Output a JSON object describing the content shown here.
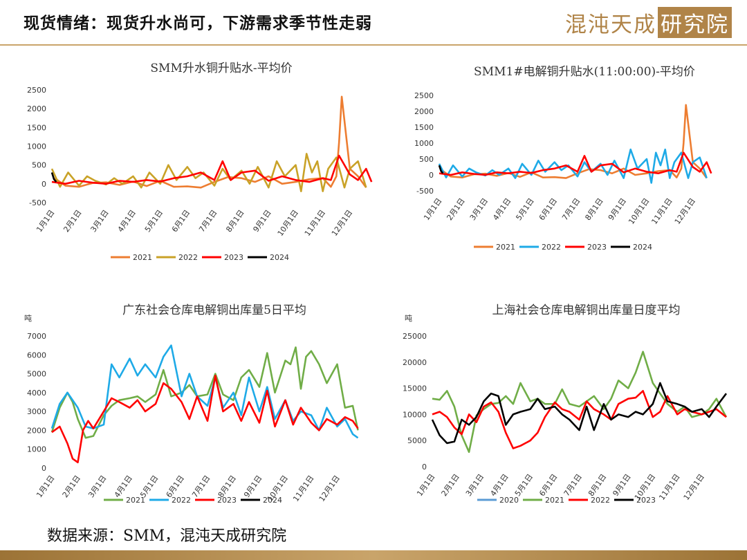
{
  "header": {
    "title": "现货情绪：现货升水尚可，下游需求季节性走弱",
    "brand_text": "混沌天成研究院"
  },
  "footer": {
    "source": "数据来源：SMM，混沌天成研究院"
  },
  "colors": {
    "accent": "#c9a46a",
    "y2020": "#5b9bd5",
    "y2021_orange": "#ed7d31",
    "y2021_green": "#70ad47",
    "y2022_gold": "#c9a227",
    "y2022_blue": "#1eaae7",
    "y2023": "#ff0000",
    "y2024": "#000000"
  },
  "chart_data": [
    {
      "type": "line",
      "title": "SMM升水铜升贴水-平均价",
      "unit": "",
      "x_ticks": [
        "1月1日",
        "2月1日",
        "3月1日",
        "4月1日",
        "5月1日",
        "6月1日",
        "7月1日",
        "8月1日",
        "9月1日",
        "10月1日",
        "11月1日",
        "12月1日"
      ],
      "ylim": [
        -500,
        2500
      ],
      "y_ticks": [
        -500,
        0,
        500,
        1000,
        1500,
        2000,
        2500
      ],
      "series": [
        {
          "name": "2021",
          "color": "#ed7d31",
          "x": [
            0.1,
            0.5,
            1,
            1.5,
            2,
            2.5,
            3,
            3.5,
            4,
            4.5,
            5,
            5.5,
            6,
            6.5,
            7,
            7.5,
            8,
            8.5,
            9,
            9.5,
            10,
            10.3,
            10.5,
            10.6,
            10.7,
            11,
            11.3,
            11.6
          ],
          "values": [
            150,
            -50,
            -80,
            20,
            40,
            -30,
            60,
            -60,
            80,
            -80,
            -70,
            -100,
            50,
            180,
            150,
            50,
            200,
            0,
            50,
            120,
            150,
            -80,
            200,
            1100,
            2320,
            400,
            200,
            -100
          ]
        },
        {
          "name": "2022",
          "color": "#c9a227",
          "x": [
            0,
            0.3,
            0.6,
            1,
            1.3,
            1.6,
            2,
            2.3,
            2.6,
            3,
            3.3,
            3.6,
            4,
            4.3,
            4.6,
            5,
            5.3,
            5.6,
            6,
            6.3,
            6.6,
            7,
            7.3,
            7.6,
            8,
            8.3,
            8.6,
            9,
            9.2,
            9.4,
            9.6,
            9.8,
            10,
            10.2,
            10.5,
            10.8,
            11,
            11.3,
            11.6
          ],
          "values": [
            400,
            -80,
            300,
            -50,
            200,
            80,
            -20,
            150,
            0,
            200,
            -100,
            300,
            0,
            500,
            100,
            450,
            150,
            300,
            -50,
            400,
            100,
            350,
            0,
            450,
            -100,
            600,
            200,
            500,
            -200,
            800,
            300,
            600,
            -200,
            400,
            700,
            -100,
            400,
            600,
            -100
          ]
        },
        {
          "name": "2023",
          "color": "#ff0000",
          "x": [
            0,
            0.5,
            1,
            1.5,
            2,
            2.5,
            3,
            3.5,
            4,
            4.5,
            5,
            5.5,
            6,
            6.3,
            6.6,
            7,
            7.5,
            8,
            8.5,
            9,
            9.5,
            10,
            10.3,
            10.6,
            11,
            11.3,
            11.6,
            11.8
          ],
          "values": [
            50,
            0,
            80,
            30,
            0,
            80,
            50,
            100,
            60,
            150,
            200,
            300,
            100,
            600,
            100,
            300,
            350,
            80,
            200,
            100,
            50,
            150,
            100,
            750,
            250,
            100,
            400,
            50
          ]
        },
        {
          "name": "2024",
          "color": "#000000",
          "x": [
            0,
            0.08,
            0.16
          ],
          "values": [
            300,
            120,
            50
          ]
        }
      ]
    },
    {
      "type": "line",
      "title": "SMM1#电解铜升贴水(11:00:00)-平均价",
      "unit": "",
      "x_ticks": [
        "1月1日",
        "2月1日",
        "3月1日",
        "4月1日",
        "5月1日",
        "6月1日",
        "7月1日",
        "8月1日",
        "9月1日",
        "10月1日",
        "11月1日",
        "12月1日"
      ],
      "ylim": [
        -500,
        2500
      ],
      "y_ticks": [
        -500,
        0,
        500,
        1000,
        1500,
        2000,
        2500
      ],
      "series": [
        {
          "name": "2021",
          "color": "#ed7d31",
          "x": [
            0.1,
            0.5,
            1,
            1.5,
            2,
            2.5,
            3,
            3.5,
            4,
            4.5,
            5,
            5.5,
            6,
            6.5,
            7,
            7.5,
            8,
            8.5,
            9,
            9.5,
            10,
            10.3,
            10.5,
            10.6,
            10.7,
            11,
            11.3,
            11.6
          ],
          "values": [
            150,
            -50,
            -80,
            20,
            40,
            -30,
            60,
            -60,
            80,
            -80,
            -70,
            -100,
            50,
            180,
            150,
            50,
            200,
            0,
            50,
            120,
            150,
            -80,
            200,
            1000,
            2200,
            400,
            200,
            -100
          ]
        },
        {
          "name": "2022",
          "color": "#1eaae7",
          "x": [
            0,
            0.3,
            0.6,
            1,
            1.3,
            1.6,
            2,
            2.3,
            2.6,
            3,
            3.3,
            3.6,
            4,
            4.3,
            4.6,
            5,
            5.3,
            5.6,
            6,
            6.3,
            6.6,
            7,
            7.3,
            7.6,
            8,
            8.3,
            8.6,
            9,
            9.2,
            9.4,
            9.6,
            9.8,
            10,
            10.2,
            10.5,
            10.8,
            11,
            11.3,
            11.6
          ],
          "values": [
            350,
            -80,
            300,
            -50,
            200,
            80,
            -20,
            150,
            0,
            200,
            -100,
            350,
            0,
            450,
            100,
            400,
            150,
            300,
            -50,
            400,
            100,
            350,
            0,
            450,
            -100,
            800,
            200,
            500,
            -250,
            700,
            300,
            800,
            -100,
            400,
            700,
            -100,
            400,
            550,
            -100
          ]
        },
        {
          "name": "2023",
          "color": "#ff0000",
          "x": [
            0,
            0.5,
            1,
            1.5,
            2,
            2.5,
            3,
            3.5,
            4,
            4.5,
            5,
            5.5,
            6,
            6.3,
            6.6,
            7,
            7.5,
            8,
            8.5,
            9,
            9.5,
            10,
            10.3,
            10.6,
            11,
            11.3,
            11.6,
            11.8
          ],
          "values": [
            50,
            0,
            80,
            30,
            0,
            80,
            50,
            100,
            60,
            150,
            200,
            300,
            100,
            600,
            100,
            300,
            350,
            80,
            200,
            100,
            50,
            150,
            100,
            700,
            250,
            100,
            400,
            50
          ]
        },
        {
          "name": "2024",
          "color": "#000000",
          "x": [
            0,
            0.08,
            0.16
          ],
          "values": [
            300,
            120,
            50
          ]
        }
      ]
    },
    {
      "type": "line",
      "title": "广东社会仓库电解铜出库量5日平均",
      "unit": "吨",
      "x_ticks": [
        "1月1日",
        "2月1日",
        "3月1日",
        "4月1日",
        "5月1日",
        "6月1日",
        "7月1日",
        "8月1日",
        "9月1日",
        "10月1日",
        "11月1日",
        "12月1日"
      ],
      "ylim": [
        0,
        7000
      ],
      "y_ticks": [
        0,
        1000,
        2000,
        3000,
        4000,
        5000,
        6000,
        7000
      ],
      "series": [
        {
          "name": "2021",
          "color": "#70ad47",
          "x": [
            0,
            0.3,
            0.6,
            0.8,
            1,
            1.3,
            1.6,
            2,
            2.3,
            2.6,
            3,
            3.3,
            3.6,
            4,
            4.3,
            4.6,
            5,
            5.3,
            5.6,
            6,
            6.3,
            6.6,
            7,
            7.3,
            7.6,
            8,
            8.3,
            8.6,
            9,
            9.2,
            9.4,
            9.6,
            9.8,
            10,
            10.3,
            10.6,
            11,
            11.3,
            11.6,
            11.8
          ],
          "values": [
            1900,
            3200,
            4000,
            3500,
            2600,
            1600,
            1700,
            2800,
            3300,
            3600,
            3700,
            3800,
            3500,
            3900,
            5200,
            3800,
            4000,
            4400,
            3800,
            3900,
            5000,
            3900,
            3600,
            4800,
            5200,
            4300,
            6100,
            4000,
            5700,
            5500,
            6400,
            4200,
            5900,
            6200,
            5500,
            4500,
            5500,
            3200,
            3300,
            2000
          ]
        },
        {
          "name": "2022",
          "color": "#1eaae7",
          "x": [
            0,
            0.3,
            0.6,
            1,
            1.3,
            1.6,
            2,
            2.3,
            2.6,
            3,
            3.3,
            3.6,
            4,
            4.3,
            4.6,
            5,
            5.3,
            5.6,
            6,
            6.3,
            6.6,
            7,
            7.3,
            7.6,
            8,
            8.3,
            8.6,
            9,
            9.3,
            9.6,
            10,
            10.3,
            10.6,
            11,
            11.3,
            11.6,
            11.8
          ],
          "values": [
            2100,
            3400,
            4000,
            3200,
            2200,
            2100,
            2300,
            5500,
            4800,
            5800,
            4900,
            5500,
            4800,
            5900,
            6500,
            3800,
            5000,
            3800,
            3300,
            4800,
            3200,
            4000,
            2800,
            4800,
            3000,
            4300,
            2600,
            3600,
            2500,
            3000,
            2800,
            2000,
            3200,
            2200,
            2600,
            1800,
            1600
          ]
        },
        {
          "name": "2023",
          "color": "#ff0000",
          "x": [
            0,
            0.3,
            0.6,
            0.8,
            1,
            1.2,
            1.4,
            1.6,
            2,
            2.3,
            2.6,
            3,
            3.3,
            3.6,
            4,
            4.3,
            4.6,
            5,
            5.3,
            5.6,
            6,
            6.3,
            6.6,
            7,
            7.3,
            7.6,
            8,
            8.3,
            8.6,
            9,
            9.3,
            9.6,
            10,
            10.3,
            10.6,
            11,
            11.3,
            11.6,
            11.8
          ],
          "values": [
            1900,
            2200,
            1300,
            500,
            300,
            2000,
            2500,
            2100,
            3000,
            3700,
            3500,
            3200,
            3600,
            3000,
            3400,
            4500,
            4200,
            3500,
            2600,
            3800,
            2500,
            4900,
            3000,
            3400,
            2500,
            3500,
            2400,
            4100,
            2200,
            3600,
            2300,
            3200,
            2400,
            2000,
            2600,
            2300,
            2700,
            2500,
            2100
          ]
        },
        {
          "name": "2024",
          "color": "#000000",
          "x": [],
          "values": []
        }
      ]
    },
    {
      "type": "line",
      "title": "上海社会仓库电解铜出库量日度平均",
      "unit": "吨",
      "x_ticks": [
        "1月1日",
        "2月1日",
        "3月1日",
        "4月1日",
        "5月1日",
        "6月1日",
        "7月1日",
        "8月1日",
        "9月1日",
        "10月1日",
        "11月1日",
        "12月1日"
      ],
      "ylim": [
        0,
        25000
      ],
      "y_ticks": [
        0,
        5000,
        10000,
        15000,
        20000,
        25000
      ],
      "series": [
        {
          "name": "2020",
          "color": "#5b9bd5",
          "x": [],
          "values": []
        },
        {
          "name": "2021",
          "color": "#70ad47",
          "x": [
            0,
            0.3,
            0.6,
            0.9,
            1.2,
            1.5,
            1.8,
            2.1,
            2.4,
            2.7,
            3,
            3.3,
            3.6,
            4,
            4.3,
            4.6,
            5,
            5.3,
            5.6,
            6,
            6.3,
            6.6,
            7,
            7.3,
            7.6,
            8,
            8.3,
            8.6,
            9,
            9.3,
            9.6,
            10,
            10.3,
            10.6,
            11,
            11.3,
            11.6,
            12
          ],
          "values": [
            13000,
            12800,
            14500,
            11500,
            6000,
            2800,
            9800,
            11000,
            12000,
            12200,
            13500,
            12000,
            16000,
            12500,
            13000,
            12000,
            12000,
            14800,
            12000,
            11500,
            12500,
            13500,
            11000,
            13000,
            16500,
            15000,
            18000,
            22000,
            16000,
            14000,
            12000,
            10500,
            11500,
            9500,
            10000,
            11000,
            13000,
            9500
          ]
        },
        {
          "name": "2022",
          "color": "#ff0000",
          "x": [
            0,
            0.3,
            0.6,
            0.9,
            1.2,
            1.5,
            1.8,
            2.1,
            2.4,
            2.7,
            3,
            3.3,
            3.6,
            4,
            4.3,
            4.6,
            5,
            5.3,
            5.6,
            6,
            6.3,
            6.6,
            7,
            7.3,
            7.6,
            8,
            8.3,
            8.6,
            9,
            9.3,
            9.6,
            10,
            10.3,
            10.6,
            11,
            11.3,
            11.6,
            12
          ],
          "values": [
            10000,
            10500,
            9500,
            7500,
            6200,
            10000,
            8500,
            11500,
            12300,
            10500,
            6500,
            3500,
            4000,
            5000,
            6500,
            9500,
            12300,
            11000,
            10500,
            9000,
            12500,
            11000,
            10000,
            9000,
            12000,
            13000,
            13200,
            14500,
            9500,
            10500,
            13500,
            10000,
            11000,
            10500,
            10000,
            10500,
            11000,
            9500
          ]
        },
        {
          "name": "2023",
          "color": "#000000",
          "x": [
            0,
            0.3,
            0.6,
            0.9,
            1.2,
            1.5,
            1.8,
            2.1,
            2.4,
            2.7,
            3,
            3.3,
            3.6,
            4,
            4.3,
            4.6,
            5,
            5.3,
            5.6,
            6,
            6.3,
            6.6,
            7,
            7.3,
            7.6,
            8,
            8.3,
            8.6,
            9,
            9.3,
            9.6,
            10,
            10.3,
            10.6,
            11,
            11.3,
            11.6,
            12
          ],
          "values": [
            9000,
            6000,
            4500,
            4800,
            9000,
            8000,
            9500,
            12500,
            14000,
            13500,
            8000,
            10000,
            10500,
            11000,
            13000,
            11000,
            11500,
            10000,
            9000,
            7000,
            11500,
            7000,
            12000,
            9000,
            10000,
            9500,
            10500,
            10000,
            12000,
            16000,
            12500,
            12000,
            11500,
            10500,
            11000,
            9500,
            11500,
            14000
          ]
        }
      ]
    }
  ]
}
